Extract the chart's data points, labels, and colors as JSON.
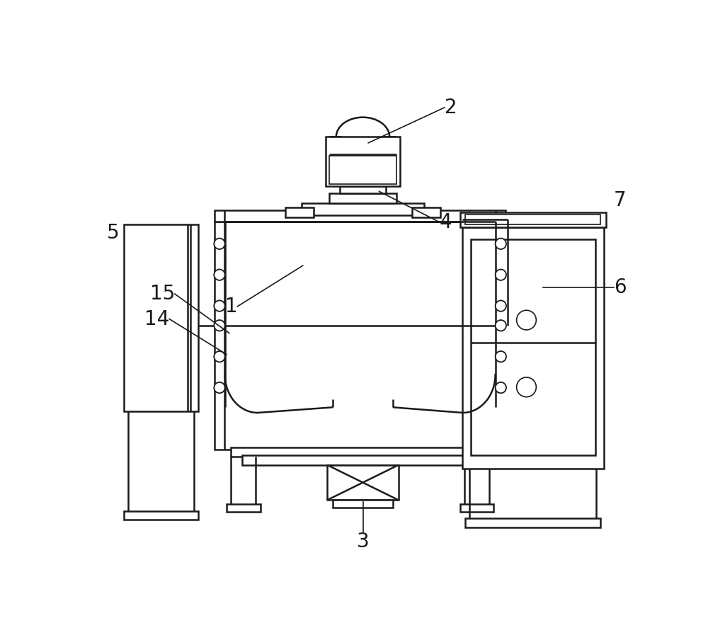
{
  "bg_color": "#ffffff",
  "line_color": "#1a1a1a",
  "lw": 1.8,
  "lw_thin": 1.2,
  "lw_med": 1.5
}
